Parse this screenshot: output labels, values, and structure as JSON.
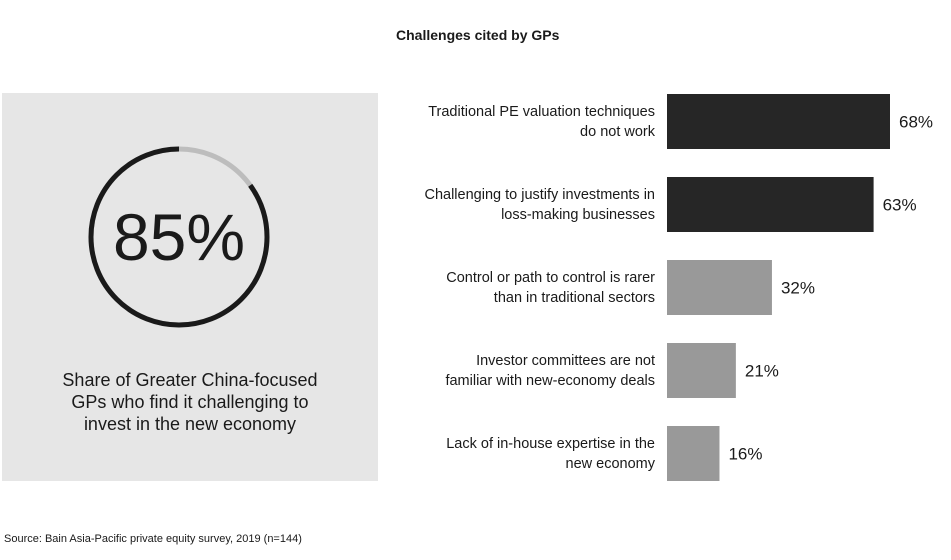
{
  "stat": {
    "value_text": "85%",
    "share": 0.85,
    "caption_lines": [
      "Share of Greater China-focused",
      "GPs who find it challenging to",
      "invest in the new economy"
    ],
    "ring_color": "#1a1a1a",
    "ring_track_color": "#bdbdbd",
    "panel_color": "#e6e6e6"
  },
  "chart_data": {
    "type": "bar",
    "orientation": "horizontal",
    "title": "Challenges cited by GPs",
    "categories": [
      [
        "Traditional PE valuation techniques",
        "do not work"
      ],
      [
        "Challenging to justify investments in",
        "loss-making businesses"
      ],
      [
        "Control or path to control is rarer",
        "than in traditional sectors"
      ],
      [
        "Investor committees are not",
        "familiar with new-economy deals"
      ],
      [
        "Lack of in-house expertise in the",
        "new economy"
      ]
    ],
    "values": [
      68,
      63,
      32,
      21,
      16
    ],
    "value_labels": [
      "68%",
      "63%",
      "32%",
      "21%",
      "16%"
    ],
    "bar_colors": [
      "#262626",
      "#262626",
      "#999999",
      "#999999",
      "#999999"
    ],
    "grid": false
  },
  "source": "Source: Bain Asia-Pacific private equity survey, 2019 (n=144)"
}
